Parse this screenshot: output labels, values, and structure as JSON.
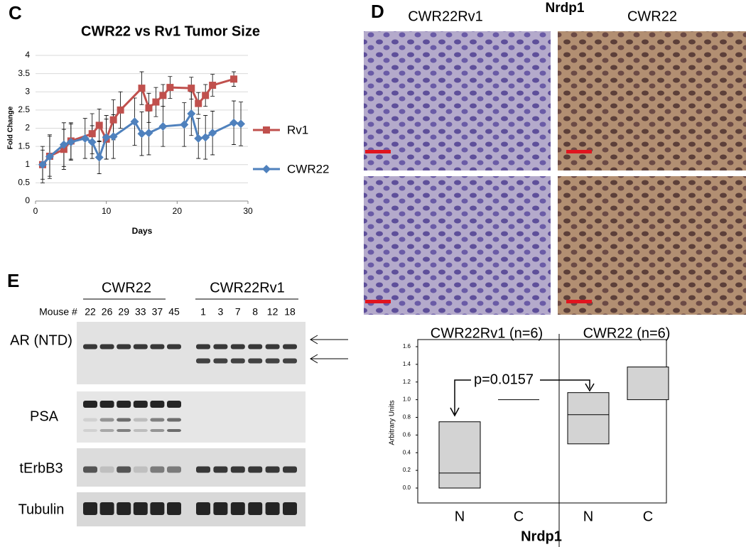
{
  "panels": {
    "c": "C",
    "d": "D",
    "e": "E"
  },
  "chart_data": [
    {
      "type": "line",
      "title": "CWR22 vs Rv1 Tumor Size",
      "x_label": "Days",
      "y_label": "Fold Change",
      "xlim": [
        0,
        30
      ],
      "xticks": [
        0,
        10,
        20,
        30
      ],
      "ylim": [
        0,
        4
      ],
      "yticks": [
        0,
        0.5,
        1,
        1.5,
        2,
        2.5,
        3,
        3.5,
        4
      ],
      "series": [
        {
          "name": "Rv1",
          "color": "#c0504d",
          "marker": "square",
          "x": [
            1,
            2,
            4,
            5,
            8,
            9,
            10,
            11,
            12,
            15,
            16,
            17,
            18,
            19,
            22,
            23,
            24,
            25,
            28
          ],
          "values": [
            1.0,
            1.23,
            1.42,
            1.65,
            1.85,
            2.08,
            1.7,
            2.23,
            2.5,
            3.1,
            2.56,
            2.72,
            2.9,
            3.12,
            3.1,
            2.68,
            2.9,
            3.18,
            3.35
          ],
          "errors": [
            0.4,
            0.55,
            0.55,
            0.5,
            0.55,
            0.45,
            0.55,
            0.55,
            0.5,
            0.45,
            0.4,
            0.4,
            0.3,
            0.3,
            0.3,
            0.3,
            0.3,
            0.3,
            0.2
          ]
        },
        {
          "name": "CWR22",
          "color": "#4f81bd",
          "marker": "diamond",
          "x": [
            1,
            2,
            4,
            5,
            7,
            8,
            9,
            10,
            11,
            14,
            15,
            16,
            18,
            21,
            22,
            23,
            24,
            25,
            28,
            29
          ],
          "values": [
            1.0,
            1.22,
            1.55,
            1.62,
            1.72,
            1.62,
            1.2,
            1.75,
            1.77,
            2.18,
            1.85,
            1.87,
            2.05,
            2.1,
            2.4,
            1.72,
            1.75,
            1.87,
            2.15,
            2.12
          ],
          "errors": [
            0.5,
            0.6,
            0.6,
            0.5,
            0.55,
            0.45,
            0.45,
            0.6,
            0.6,
            0.65,
            0.6,
            0.6,
            0.55,
            0.6,
            0.6,
            0.55,
            0.6,
            0.6,
            0.6,
            0.6
          ]
        }
      ]
    },
    {
      "type": "box",
      "x_label": "Nrdp1",
      "y_label": "Arbitrary Units",
      "annotation": "p=0.0157",
      "groups": [
        "CWR22Rv1 (n=6)",
        "CWR22 (n=6)"
      ],
      "categories": [
        "N",
        "C",
        "N",
        "C"
      ],
      "color": "#d3d3d3",
      "q1": [
        0,
        1.0,
        0.5,
        1.0
      ],
      "median": [
        0.17,
        1.0,
        0.83,
        null
      ],
      "q3": [
        0.75,
        1.0,
        1.08,
        1.37
      ],
      "ylim": [
        0,
        1.6
      ],
      "yticks": [
        {
          "value": 0,
          "label": "0.0"
        },
        {
          "value": 0.2,
          "label": "0.2"
        },
        {
          "value": 0.4,
          "label": "0.4"
        },
        {
          "value": 0.6,
          "label": "0.6"
        },
        {
          "value": 0.8,
          "label": "0.8"
        },
        {
          "value": 1,
          "label": "1.0"
        },
        {
          "value": 1.2,
          "label": "1.2"
        },
        {
          "value": 1.4,
          "label": "1.4"
        },
        {
          "value": 1.6,
          "label": "1.6"
        }
      ]
    }
  ],
  "micrographs": {
    "title": "Nrdp1",
    "columns": [
      "CWR22Rv1",
      "CWR22"
    ]
  },
  "blot": {
    "lane_label": "Mouse #",
    "groups": [
      {
        "name": "CWR22",
        "lanes": [
          22,
          26,
          29,
          33,
          37,
          45
        ]
      },
      {
        "name": "CWR22Rv1",
        "lanes": [
          1,
          3,
          7,
          8,
          12,
          18
        ]
      }
    ],
    "rows": [
      "AR (NTD)",
      "PSA",
      "tErbB3",
      "Tubulin"
    ]
  }
}
